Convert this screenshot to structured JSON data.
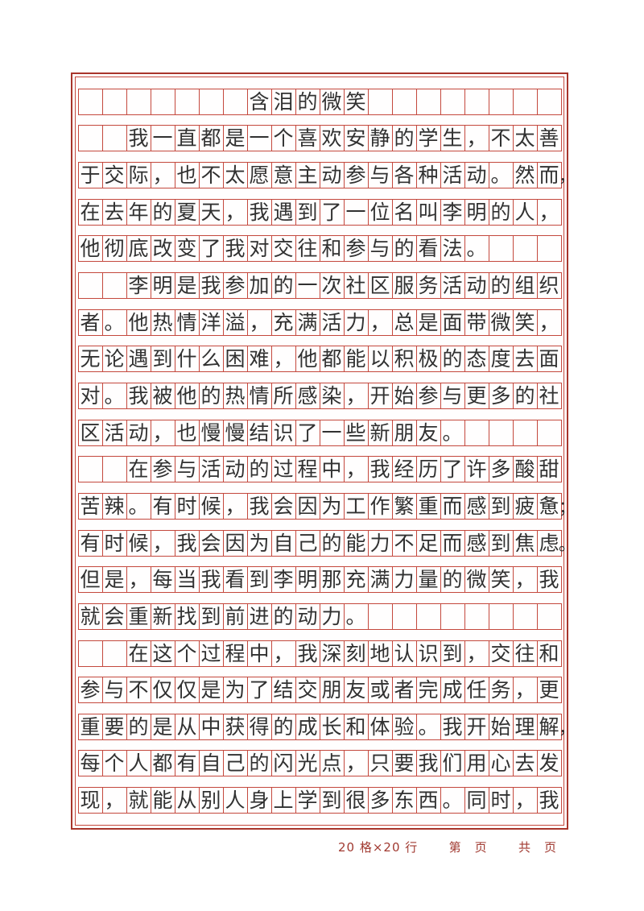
{
  "document": {
    "title": "含泪的微笑",
    "paper_type": "chinese-composition-grid",
    "grid": {
      "columns_per_row": 20,
      "rows": 20
    },
    "rows": [
      {
        "cells": "　　　　　　　含泪的微笑　　　　　　　　",
        "overflow": ""
      },
      {
        "cells": "　　我一直都是一个喜欢安静的学生，不太善",
        "overflow": ""
      },
      {
        "cells": "于交际，也不太愿意主动参与各种活动。然而",
        "overflow": "，"
      },
      {
        "cells": "在去年的夏天，我遇到了一位名叫李明的人，",
        "overflow": ""
      },
      {
        "cells": "他彻底改变了我对交往和参与的看法。　　　",
        "overflow": ""
      },
      {
        "cells": "　　李明是我参加的一次社区服务活动的组织",
        "overflow": ""
      },
      {
        "cells": "者。他热情洋溢，充满活力，总是面带微笑，",
        "overflow": ""
      },
      {
        "cells": "无论遇到什么困难，他都能以积极的态度去面",
        "overflow": ""
      },
      {
        "cells": "对。我被他的热情所感染，开始参与更多的社",
        "overflow": ""
      },
      {
        "cells": "区活动，也慢慢结识了一些新朋友。　　　　",
        "overflow": ""
      },
      {
        "cells": "　　在参与活动的过程中，我经历了许多酸甜",
        "overflow": ""
      },
      {
        "cells": "苦辣。有时候，我会因为工作繁重而感到疲惫",
        "overflow": "；"
      },
      {
        "cells": "有时候，我会因为自己的能力不足而感到焦虑",
        "overflow": "。"
      },
      {
        "cells": "但是，每当我看到李明那充满力量的微笑，我",
        "overflow": ""
      },
      {
        "cells": "就会重新找到前进的动力。　　　　　　　　",
        "overflow": ""
      },
      {
        "cells": "　　在这个过程中，我深刻地认识到，交往和",
        "overflow": ""
      },
      {
        "cells": "参与不仅仅是为了结交朋友或者完成任务，更",
        "overflow": ""
      },
      {
        "cells": "重要的是从中获得的成长和体验。我开始理解",
        "overflow": "，"
      },
      {
        "cells": "每个人都有自己的闪光点，只要我们用心去发",
        "overflow": ""
      },
      {
        "cells": "现，就能从别人身上学到很多东西。同时，我",
        "overflow": ""
      }
    ],
    "footer": {
      "spec_label": "20 格×20 行",
      "current_page_label": "第　页",
      "total_pages_label": "共　页"
    }
  },
  "colors": {
    "frame_border": "#a8352b",
    "grid_line": "#c4483d",
    "ink": "#313131",
    "footer_text": "#a13a31",
    "background": "#ffffff"
  }
}
